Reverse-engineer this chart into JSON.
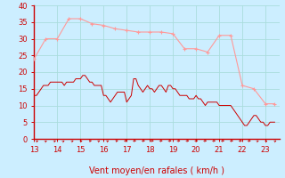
{
  "title": "",
  "xlabel": "Vent moyen/en rafales ( km/h )",
  "background_color": "#cceeff",
  "grid_color": "#aadddd",
  "axis_color": "#cc0000",
  "text_color": "#cc0000",
  "xlim": [
    13,
    23.6
  ],
  "ylim": [
    0,
    40
  ],
  "yticks": [
    0,
    5,
    10,
    15,
    20,
    25,
    30,
    35,
    40
  ],
  "xticks": [
    13,
    14,
    15,
    16,
    17,
    18,
    19,
    20,
    21,
    22,
    23
  ],
  "rafales_x": [
    13.0,
    13.5,
    14.0,
    14.5,
    15.0,
    15.5,
    16.0,
    16.5,
    17.0,
    17.5,
    18.0,
    18.5,
    19.0,
    19.5,
    20.0,
    20.5,
    21.0,
    21.5,
    22.0,
    22.5,
    23.0,
    23.4
  ],
  "rafales_y": [
    24,
    30,
    30,
    36,
    36,
    34.5,
    34,
    33,
    32.5,
    32,
    32,
    32,
    31.5,
    27,
    27,
    26,
    31,
    31,
    16,
    15,
    10.5,
    10.5
  ],
  "moyen_x": [
    13.0,
    13.1,
    13.2,
    13.3,
    13.4,
    13.5,
    13.6,
    13.7,
    13.8,
    13.9,
    14.0,
    14.1,
    14.2,
    14.3,
    14.4,
    14.5,
    14.6,
    14.7,
    14.8,
    14.9,
    15.0,
    15.1,
    15.2,
    15.3,
    15.4,
    15.5,
    15.6,
    15.7,
    15.8,
    15.9,
    16.0,
    16.1,
    16.2,
    16.3,
    16.4,
    16.5,
    16.6,
    16.7,
    16.8,
    16.9,
    17.0,
    17.1,
    17.2,
    17.3,
    17.4,
    17.5,
    17.6,
    17.7,
    17.8,
    17.9,
    18.0,
    18.1,
    18.2,
    18.3,
    18.4,
    18.5,
    18.6,
    18.7,
    18.8,
    18.9,
    19.0,
    19.1,
    19.2,
    19.3,
    19.4,
    19.5,
    19.6,
    19.7,
    19.8,
    19.9,
    20.0,
    20.1,
    20.2,
    20.3,
    20.4,
    20.5,
    20.6,
    20.7,
    20.8,
    20.9,
    21.0,
    21.1,
    21.2,
    21.3,
    21.4,
    21.5,
    21.6,
    21.7,
    21.8,
    21.9,
    22.0,
    22.1,
    22.2,
    22.3,
    22.4,
    22.5,
    22.6,
    22.7,
    22.8,
    22.9,
    23.0,
    23.1,
    23.2,
    23.4
  ],
  "moyen_y": [
    13,
    13,
    14,
    15,
    16,
    16,
    16,
    17,
    17,
    17,
    17,
    17,
    17,
    16,
    17,
    17,
    17,
    17,
    18,
    18,
    18,
    19,
    19,
    18,
    17,
    17,
    16,
    16,
    16,
    16,
    13,
    13,
    12,
    11,
    12,
    13,
    14,
    14,
    14,
    14,
    11,
    12,
    13,
    18,
    18,
    16,
    15,
    14,
    15,
    16,
    15,
    15,
    14,
    15,
    16,
    16,
    15,
    14,
    16,
    16,
    15,
    15,
    14,
    13,
    13,
    13,
    13,
    12,
    12,
    12,
    13,
    12,
    12,
    11,
    10,
    11,
    11,
    11,
    11,
    11,
    10,
    10,
    10,
    10,
    10,
    10,
    9,
    8,
    7,
    6,
    5,
    4,
    4,
    5,
    6,
    7,
    7,
    6,
    5,
    5,
    4,
    4,
    5,
    5
  ],
  "rafales_color": "#ff9999",
  "moyen_color": "#cc0000",
  "xlabel_fontsize": 7,
  "tick_fontsize": 6,
  "arrow_angles": [
    45,
    50,
    45,
    50,
    45,
    45,
    30,
    45,
    45,
    30,
    10,
    10,
    10,
    10,
    10,
    10,
    10,
    10,
    10,
    10,
    10,
    10,
    10,
    10,
    10,
    45,
    50,
    45
  ]
}
